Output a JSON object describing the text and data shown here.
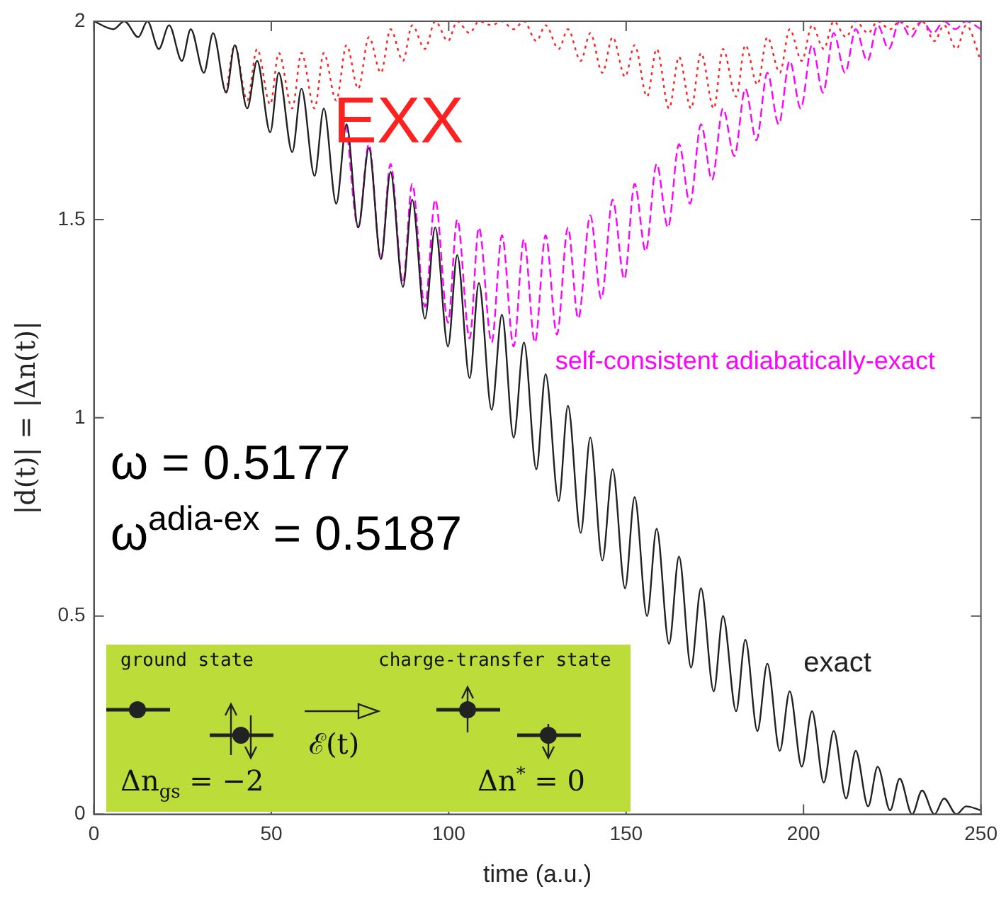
{
  "chart_data": {
    "type": "line",
    "xlabel": "time (a.u.)",
    "ylabel": "|d(t)| = |Δn(t)|",
    "xlim": [
      0,
      250
    ],
    "ylim": [
      0,
      2
    ],
    "xticks": [
      0,
      50,
      100,
      150,
      200,
      250
    ],
    "yticks": [
      0,
      0.5,
      1,
      1.5,
      2
    ],
    "marker": "none",
    "series": [
      {
        "name": "exact",
        "color": "#222222",
        "line_style": "solid",
        "x": [
          0,
          5.5,
          8.6,
          12.5,
          15.1,
          18.3,
          21.2,
          24.8,
          27.3,
          31.0,
          33.6,
          37.3,
          39.7,
          43.2,
          46.0,
          49.7,
          52.1,
          55.9,
          58.5,
          62.2,
          64.8,
          68.3,
          71.2,
          74.5,
          77.5,
          80.9,
          83.6,
          87.1,
          89.7,
          93.3,
          96.2,
          99.8,
          102.4,
          105.9,
          108.5,
          112.1,
          115.0,
          118.3,
          121.2,
          124.7,
          127.3,
          131.0,
          133.6,
          137.2,
          139.9,
          143.3,
          146.2,
          149.7,
          152.4,
          155.9,
          158.6,
          162.1,
          164.9,
          168.3,
          171.1,
          174.7,
          177.3,
          181.0,
          183.6,
          187.0,
          189.8,
          193.3,
          196.1,
          199.5,
          202.4,
          205.7,
          208.5,
          212.0,
          214.7,
          218.2,
          220.9,
          224.4,
          227.1,
          230.6,
          233.4,
          236.9,
          239.6,
          243.1,
          245.8,
          250
        ],
        "values": [
          2.0,
          1.98,
          2.0,
          1.96,
          2.0,
          1.93,
          1.99,
          1.9,
          1.98,
          1.87,
          1.97,
          1.82,
          1.94,
          1.78,
          1.9,
          1.72,
          1.87,
          1.67,
          1.83,
          1.61,
          1.78,
          1.54,
          1.74,
          1.48,
          1.68,
          1.4,
          1.62,
          1.33,
          1.55,
          1.25,
          1.48,
          1.18,
          1.41,
          1.1,
          1.34,
          1.02,
          1.26,
          0.95,
          1.19,
          0.87,
          1.11,
          0.79,
          1.03,
          0.71,
          0.95,
          0.64,
          0.87,
          0.57,
          0.8,
          0.5,
          0.72,
          0.43,
          0.65,
          0.37,
          0.57,
          0.31,
          0.5,
          0.26,
          0.44,
          0.21,
          0.38,
          0.16,
          0.31,
          0.12,
          0.26,
          0.08,
          0.21,
          0.04,
          0.16,
          0.02,
          0.12,
          0.01,
          0.09,
          0,
          0.06,
          0,
          0.04,
          0,
          0.02,
          0.01
        ]
      },
      {
        "name": "self-consistent adiabatically-exact",
        "color": "#ff00ff",
        "line_style": "dashed",
        "x": [
          71.2,
          74.5,
          77.5,
          80.9,
          83.6,
          87.1,
          89.7,
          93.3,
          96.2,
          99.8,
          102.4,
          105.9,
          108.5,
          112.1,
          115.0,
          118.3,
          121.2,
          124.3,
          127.3,
          130.5,
          133.6,
          136.5,
          139.9,
          143.0,
          146.2,
          149.5,
          152.4,
          155.5,
          158.6,
          161.8,
          164.9,
          168.0,
          171.1,
          174.2,
          177.3,
          180.5,
          183.6,
          186.7,
          189.8,
          193.0,
          196.1,
          199.2,
          202.4,
          205.5,
          208.5,
          211.7,
          214.7,
          218.0,
          220.9,
          224.0,
          227.1,
          230.3,
          233.4,
          236.5,
          239.6,
          242.8,
          245.8,
          250
        ],
        "values": [
          1.74,
          1.48,
          1.69,
          1.4,
          1.64,
          1.34,
          1.59,
          1.28,
          1.55,
          1.24,
          1.5,
          1.2,
          1.48,
          1.19,
          1.46,
          1.18,
          1.45,
          1.19,
          1.46,
          1.21,
          1.48,
          1.25,
          1.51,
          1.3,
          1.55,
          1.35,
          1.59,
          1.42,
          1.64,
          1.48,
          1.69,
          1.54,
          1.74,
          1.6,
          1.78,
          1.66,
          1.83,
          1.7,
          1.87,
          1.74,
          1.9,
          1.78,
          1.94,
          1.82,
          1.97,
          1.87,
          1.98,
          1.9,
          1.99,
          1.93,
          2.0,
          1.96,
          2.0,
          1.97,
          2.0,
          1.98,
          2.0,
          1.98
        ]
      },
      {
        "name": "EXX",
        "color": "#ff2020",
        "line_style": "dotted",
        "x": [
          37.3,
          39.7,
          43.2,
          46.0,
          49.7,
          52.1,
          55.9,
          58.5,
          62.2,
          64.8,
          68.3,
          71.2,
          74.5,
          77.5,
          80.9,
          83.6,
          87.1,
          89.7,
          93.3,
          96.2,
          99.8,
          102.4,
          105.9,
          108.5,
          112.1,
          115.0,
          118.3,
          121.2,
          124.7,
          127.3,
          131.0,
          133.6,
          137.2,
          139.9,
          143.3,
          146.2,
          149.7,
          152.4,
          155.9,
          158.6,
          162.1,
          164.9,
          168.3,
          171.1,
          174.7,
          177.3,
          181.0,
          183.6,
          187.0,
          189.8,
          193.3,
          196.1,
          199.5,
          202.4,
          205.7,
          208.5,
          212.0,
          214.7,
          218.2,
          220.9,
          224.4,
          227.1,
          230.6,
          233.4,
          236.9,
          239.6,
          243.1,
          245.8,
          250
        ],
        "values": [
          1.82,
          1.94,
          1.8,
          1.93,
          1.79,
          1.92,
          1.78,
          1.92,
          1.78,
          1.92,
          1.8,
          1.94,
          1.83,
          1.96,
          1.87,
          1.98,
          1.9,
          1.99,
          1.93,
          2.0,
          1.95,
          2.0,
          1.97,
          2.0,
          1.99,
          2.0,
          1.98,
          2.0,
          1.95,
          1.99,
          1.93,
          1.98,
          1.9,
          1.97,
          1.87,
          1.96,
          1.86,
          1.94,
          1.81,
          1.93,
          1.78,
          1.91,
          1.78,
          1.92,
          1.78,
          1.93,
          1.81,
          1.94,
          1.84,
          1.96,
          1.87,
          1.98,
          1.9,
          1.99,
          1.93,
          2.0,
          1.96,
          2.0,
          1.97,
          2.0,
          1.98,
          2.0,
          1.98,
          2.0,
          1.95,
          1.99,
          1.93,
          1.99,
          1.9
        ]
      }
    ],
    "annotations": [
      "ω = 0.5177",
      "ω$^{adia-ex}$ = 0.5187",
      "ground state",
      "charge-transfer state",
      "ℰ(t)",
      "Δn$_{gs}$ = −2",
      "Δn$^{*}$ = 0"
    ]
  }
}
